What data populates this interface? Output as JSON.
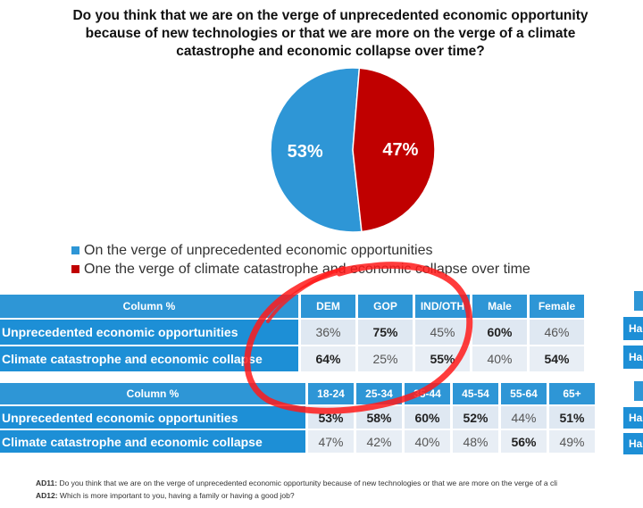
{
  "title": "Do you think that we are on the verge of unprecedented economic opportunity because of new technologies or that we are more on the verge of a climate catastrophe and economic collapse over time?",
  "chart_data": {
    "type": "pie",
    "slices": [
      {
        "name": "On the verge of unprecedented economic opportunities",
        "value": 53,
        "label": "53%",
        "color": "#2e96d6"
      },
      {
        "name": "One the verge of climate catastrophe and economic collapse over time",
        "value": 47,
        "label": "47%",
        "color": "#c00000"
      }
    ],
    "legend_position": "bottom-left"
  },
  "legend": [
    {
      "label": "On the verge of unprecedented economic opportunities",
      "color": "#2e96d6"
    },
    {
      "label": "One the verge of climate catastrophe and economic collapse over time",
      "color": "#c00000"
    }
  ],
  "table1": {
    "corner": "Column %",
    "columns": [
      "DEM",
      "GOP",
      "IND/OTH",
      "Male",
      "Female"
    ],
    "rows": [
      {
        "label": "Unprecedented economic opportunities",
        "values": [
          "36%",
          "75%",
          "45%",
          "60%",
          "46%"
        ],
        "bold": [
          false,
          true,
          false,
          true,
          false
        ]
      },
      {
        "label": "Climate catastrophe and economic collapse",
        "values": [
          "64%",
          "25%",
          "55%",
          "40%",
          "54%"
        ],
        "bold": [
          true,
          false,
          true,
          false,
          true
        ]
      }
    ]
  },
  "table2": {
    "corner": "Column %",
    "columns": [
      "18-24",
      "25-34",
      "35-44",
      "45-54",
      "55-64",
      "65+"
    ],
    "rows": [
      {
        "label": "Unprecedented economic opportunities",
        "values": [
          "53%",
          "58%",
          "60%",
          "52%",
          "44%",
          "51%"
        ],
        "bold": [
          true,
          true,
          true,
          true,
          false,
          true
        ]
      },
      {
        "label": "Climate catastrophe and economic collapse",
        "values": [
          "47%",
          "42%",
          "40%",
          "48%",
          "56%",
          "49%"
        ],
        "bold": [
          false,
          false,
          false,
          false,
          true,
          false
        ]
      }
    ]
  },
  "edge_labels": [
    "Ha",
    "Ha",
    "Ha",
    "Ha"
  ],
  "footnotes": [
    {
      "code": "AD11:",
      "text": " Do you think that we are on the verge of unprecedented economic opportunity because of new technologies or that we are more on the verge of a cli"
    },
    {
      "code": "AD12:",
      "text": " Which is more important to you, having a family or having a good job?"
    }
  ],
  "annotation": {
    "color": "#ff1a1a"
  }
}
